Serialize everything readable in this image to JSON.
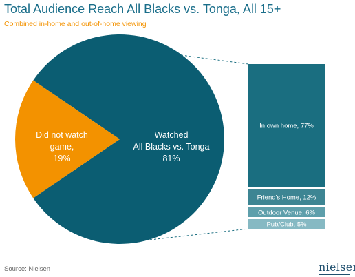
{
  "title": "Total Audience Reach All Blacks vs. Tonga, All 15+",
  "subtitle": "Combined in-home and out-of-home viewing",
  "source": "Source:  Nielsen",
  "logo": "nielsen",
  "colors": {
    "title": "#1a6e8a",
    "subtitle": "#f39200",
    "pie_watched": "#0b5d72",
    "pie_not_watched": "#f39200",
    "bar_main": "#1a6e80",
    "bar_friend": "#3d8593",
    "bar_outdoor": "#5e9fab",
    "bar_pub": "#86b9c3"
  },
  "chart_data": [
    {
      "type": "pie",
      "slices": [
        {
          "label": [
            "Watched",
            "All Blacks vs. Tonga",
            "81%"
          ],
          "value": 81
        },
        {
          "label": [
            "Did not watch",
            "game,",
            "19%"
          ],
          "value": 19
        }
      ]
    },
    {
      "type": "bar",
      "stacked": true,
      "segments": [
        {
          "label": "In own home, 77%",
          "value": 77
        },
        {
          "label": "Friend's Home, 12%",
          "value": 12
        },
        {
          "label": "Outdoor Venue, 6%",
          "value": 6
        },
        {
          "label": "Pub/Club, 5%",
          "value": 5
        }
      ]
    }
  ]
}
